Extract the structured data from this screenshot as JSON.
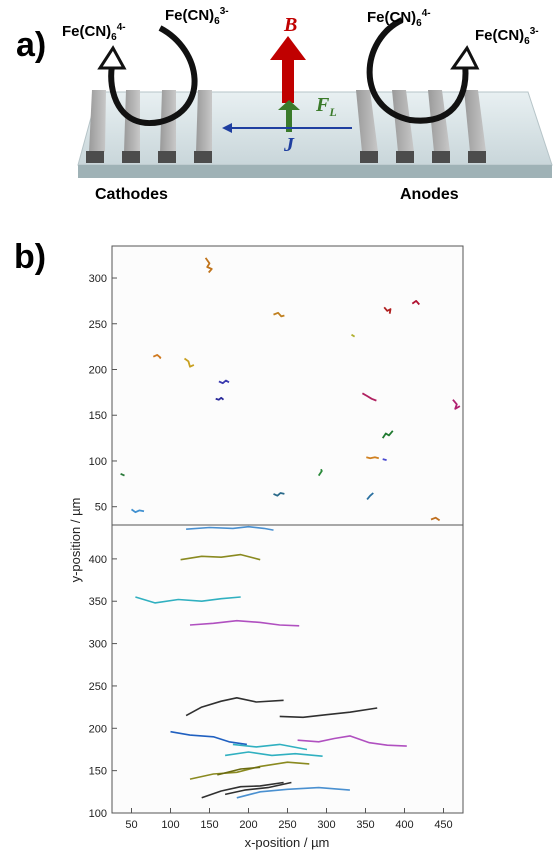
{
  "panel_a": {
    "label": "a)",
    "cathode_oxidized": {
      "base": "Fe(CN)",
      "sub": "6",
      "sup": "4-"
    },
    "cathode_reduced": {
      "base": "Fe(CN)",
      "sub": "6",
      "sup": "3-"
    },
    "anode_left": {
      "base": "Fe(CN)",
      "sub": "6",
      "sup": "4-"
    },
    "anode_right": {
      "base": "Fe(CN)",
      "sub": "6",
      "sup": "3-"
    },
    "b_field": "B",
    "lorentz_force": {
      "base": "F",
      "sub": "L"
    },
    "current": "J",
    "cathodes_label": "Cathodes",
    "anodes_label": "Anodes",
    "colors": {
      "b_arrow": "#c00000",
      "fl_arrow": "#3a7a2a",
      "j_arrow": "#1f3fa0"
    }
  },
  "panel_b": {
    "label": "b)",
    "xlabel": "x-position / µm",
    "ylabel": "y-position / µm",
    "x_ticks": [
      "50",
      "100",
      "150",
      "200",
      "250",
      "300",
      "350",
      "400",
      "450"
    ],
    "y_ticks_top": [
      "50",
      "100",
      "150",
      "200",
      "250",
      "300"
    ],
    "y_ticks_bottom": [
      "100",
      "150",
      "200",
      "250",
      "300",
      "350",
      "400"
    ]
  },
  "chart_data": [
    {
      "type": "scatter",
      "title": "",
      "xlabel": "x-position / µm",
      "ylabel": "y-position / µm",
      "xlim": [
        25,
        475
      ],
      "ylim": [
        30,
        335
      ],
      "grid": false,
      "series": [
        {
          "color": "#c0741c",
          "points": [
            [
              145,
              322
            ],
            [
              150,
              316
            ],
            [
              147,
              312
            ],
            [
              153,
              310
            ],
            [
              149,
              306
            ]
          ]
        },
        {
          "color": "#c08020",
          "points": [
            [
              232,
              260
            ],
            [
              238,
              262
            ],
            [
              242,
              258
            ],
            [
              246,
              259
            ]
          ]
        },
        {
          "color": "#d07a20",
          "points": [
            [
              78,
              214
            ],
            [
              83,
              216
            ],
            [
              87,
              213
            ],
            [
              86,
              212
            ]
          ]
        },
        {
          "color": "#c8a020",
          "points": [
            [
              118,
              212
            ],
            [
              123,
              209
            ],
            [
              125,
              203
            ],
            [
              130,
              205
            ]
          ]
        },
        {
          "color": "#3a3ab0",
          "points": [
            [
              162,
              187
            ],
            [
              167,
              185
            ],
            [
              171,
              188
            ],
            [
              175,
              186
            ]
          ]
        },
        {
          "color": "#2a2a9a",
          "points": [
            [
              158,
              168
            ],
            [
              162,
              167
            ],
            [
              165,
              169
            ],
            [
              168,
              167
            ]
          ]
        },
        {
          "color": "#b0b030",
          "points": [
            [
              332,
              238
            ],
            [
              336,
              236
            ]
          ]
        },
        {
          "color": "#b02020",
          "points": [
            [
              374,
              268
            ],
            [
              378,
              264
            ],
            [
              382,
              266
            ],
            [
              381,
              261
            ]
          ]
        },
        {
          "color": "#b01030",
          "points": [
            [
              410,
              272
            ],
            [
              415,
              275
            ],
            [
              419,
              271
            ]
          ]
        },
        {
          "color": "#b02060",
          "points": [
            [
              346,
              174
            ],
            [
              352,
              171
            ],
            [
              358,
              168
            ],
            [
              364,
              166
            ]
          ]
        },
        {
          "color": "#b02070",
          "points": [
            [
              462,
              167
            ],
            [
              467,
              162
            ],
            [
              465,
              157
            ],
            [
              471,
              160
            ]
          ]
        },
        {
          "color": "#207a30",
          "points": [
            [
              372,
              125
            ],
            [
              376,
              130
            ],
            [
              380,
              128
            ],
            [
              385,
              133
            ]
          ]
        },
        {
          "color": "#4a4ad0",
          "points": [
            [
              372,
              102
            ],
            [
              377,
              101
            ]
          ]
        },
        {
          "color": "#d08020",
          "points": [
            [
              351,
              104
            ],
            [
              356,
              103
            ],
            [
              362,
              104
            ],
            [
              367,
              103
            ]
          ]
        },
        {
          "color": "#2a8a3a",
          "points": [
            [
              290,
              84
            ],
            [
              294,
              89
            ],
            [
              293,
              91
            ]
          ]
        },
        {
          "color": "#2a6a8a",
          "points": [
            [
              232,
              64
            ],
            [
              237,
              62
            ],
            [
              241,
              65
            ],
            [
              246,
              64
            ]
          ]
        },
        {
          "color": "#2a70a0",
          "points": [
            [
              352,
              58
            ],
            [
              356,
              62
            ],
            [
              360,
              65
            ]
          ]
        },
        {
          "color": "#2a7a3a",
          "points": [
            [
              36,
              86
            ],
            [
              41,
              84
            ]
          ]
        },
        {
          "color": "#4090d0",
          "points": [
            [
              50,
              47
            ],
            [
              55,
              44
            ],
            [
              60,
              46
            ],
            [
              66,
              45
            ]
          ]
        },
        {
          "color": "#c07020",
          "points": [
            [
              434,
              36
            ],
            [
              440,
              38
            ],
            [
              445,
              35
            ]
          ]
        }
      ]
    },
    {
      "type": "line",
      "title": "",
      "xlabel": "x-position / µm",
      "ylabel": "y-position / µm",
      "xlim": [
        25,
        475
      ],
      "ylim": [
        100,
        440
      ],
      "grid": false,
      "series": [
        {
          "color": "#4a90d0",
          "points": [
            [
              120,
              435
            ],
            [
              150,
              437
            ],
            [
              180,
              436
            ],
            [
              200,
              438
            ],
            [
              220,
              436
            ],
            [
              232,
              434
            ]
          ]
        },
        {
          "color": "#8a8a20",
          "points": [
            [
              113,
              399
            ],
            [
              140,
              403
            ],
            [
              165,
              402
            ],
            [
              190,
              405
            ],
            [
              215,
              399
            ]
          ]
        },
        {
          "color": "#30b0c0",
          "points": [
            [
              55,
              355
            ],
            [
              80,
              348
            ],
            [
              110,
              352
            ],
            [
              140,
              350
            ],
            [
              165,
              353
            ],
            [
              190,
              355
            ]
          ]
        },
        {
          "color": "#b050c0",
          "points": [
            [
              125,
              322
            ],
            [
              155,
              324
            ],
            [
              185,
              327
            ],
            [
              215,
              325
            ],
            [
              240,
              322
            ],
            [
              265,
              321
            ]
          ]
        },
        {
          "color": "#303030",
          "points": [
            [
              120,
              215
            ],
            [
              140,
              225
            ],
            [
              165,
              232
            ],
            [
              185,
              236
            ],
            [
              210,
              231
            ],
            [
              245,
              233
            ]
          ]
        },
        {
          "color": "#303030",
          "points": [
            [
              240,
              214
            ],
            [
              270,
              213
            ],
            [
              300,
              216
            ],
            [
              330,
              219
            ],
            [
              365,
              224
            ]
          ]
        },
        {
          "color": "#2060c0",
          "points": [
            [
              100,
              196
            ],
            [
              125,
              192
            ],
            [
              155,
              190
            ],
            [
              175,
              184
            ],
            [
              198,
              181
            ]
          ]
        },
        {
          "color": "#b050c0",
          "points": [
            [
              263,
              186
            ],
            [
              290,
              184
            ],
            [
              310,
              188
            ],
            [
              330,
              191
            ],
            [
              355,
              183
            ],
            [
              378,
              180
            ],
            [
              403,
              179
            ]
          ]
        },
        {
          "color": "#30b0c0",
          "points": [
            [
              170,
              168
            ],
            [
              200,
              172
            ],
            [
              230,
              168
            ],
            [
              260,
              170
            ],
            [
              295,
              167
            ]
          ]
        },
        {
          "color": "#30b0c0",
          "points": [
            [
              180,
              181
            ],
            [
              210,
              178
            ],
            [
              240,
              181
            ],
            [
              275,
              175
            ]
          ]
        },
        {
          "color": "#8a8a20",
          "points": [
            [
              125,
              140
            ],
            [
              155,
              146
            ],
            [
              185,
              148
            ],
            [
              215,
              155
            ],
            [
              250,
              160
            ],
            [
              278,
              158
            ]
          ]
        },
        {
          "color": "#6a6a10",
          "points": [
            [
              160,
              145
            ],
            [
              190,
              152
            ],
            [
              215,
              154
            ]
          ]
        },
        {
          "color": "#4a90d0",
          "points": [
            [
              185,
              118
            ],
            [
              215,
              125
            ],
            [
              250,
              128
            ],
            [
              290,
              130
            ],
            [
              330,
              127
            ]
          ]
        },
        {
          "color": "#303030",
          "points": [
            [
              140,
              118
            ],
            [
              165,
              126
            ],
            [
              190,
              131
            ],
            [
              215,
              132
            ],
            [
              245,
              136
            ]
          ]
        },
        {
          "color": "#303030",
          "points": [
            [
              170,
              122
            ],
            [
              195,
              127
            ],
            [
              225,
              130
            ],
            [
              255,
              136
            ]
          ]
        }
      ]
    }
  ]
}
